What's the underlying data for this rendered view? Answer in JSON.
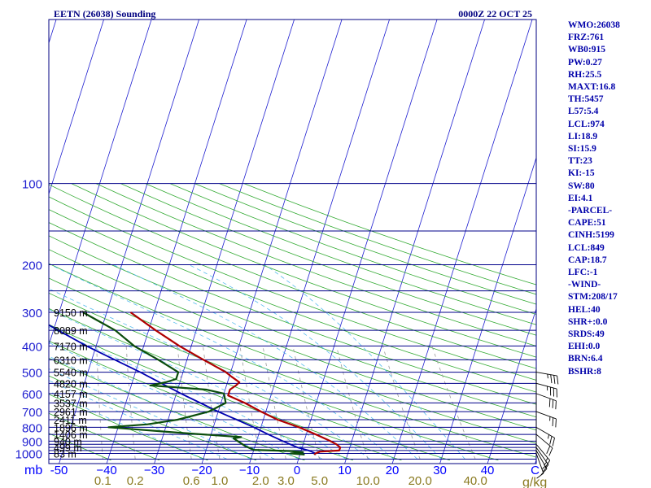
{
  "colors": {
    "frame": "#000080",
    "isobar": "#00008a",
    "isotherm": "#1f1fd0",
    "dry_adiabat": "#33aa33",
    "moist_adiabat": "#55bbee",
    "mixing_ratio": "#9a9a9a",
    "temperature": "#b00000",
    "dewpoint": "#0b4d0b",
    "parcel": "#0000b0",
    "title_text": "#000080",
    "pressure_labels": "#1f1fd0",
    "temp_labels": "#0000ff",
    "mixratio_labels": "#8a7a20",
    "height_labels": "#000000",
    "wind_barb": "#000000"
  },
  "chart_data": {
    "type": "line",
    "title": "EETN (26038) Sounding",
    "timestamp": "0000Z 22 OCT 25",
    "pressure_axis_unit": "mb",
    "pressure_ticks": [
      {
        "p": 100,
        "label": "100"
      },
      {
        "p": 200,
        "label": "200"
      },
      {
        "p": 300,
        "label": "300"
      },
      {
        "p": 400,
        "label": "400"
      },
      {
        "p": 500,
        "label": "500"
      },
      {
        "p": 600,
        "label": "600"
      },
      {
        "p": 700,
        "label": "700"
      },
      {
        "p": 800,
        "label": "800"
      },
      {
        "p": 900,
        "label": "900"
      },
      {
        "p": 1000,
        "label": "1000"
      }
    ],
    "isobars": [
      100,
      150,
      200,
      250,
      300,
      350,
      400,
      450,
      500,
      550,
      600,
      650,
      700,
      750,
      800,
      850,
      900,
      925,
      950,
      975,
      1000,
      1050
    ],
    "temp_ticks": [
      {
        "t": -50,
        "label": "-50"
      },
      {
        "t": -40,
        "label": "−40"
      },
      {
        "t": -30,
        "label": "−30"
      },
      {
        "t": -20,
        "label": "−20"
      },
      {
        "t": -10,
        "label": "−10"
      },
      {
        "t": 0,
        "label": "0"
      },
      {
        "t": 10,
        "label": "10"
      },
      {
        "t": 20,
        "label": "20"
      },
      {
        "t": 30,
        "label": "30"
      },
      {
        "t": 40,
        "label": "40"
      },
      {
        "t": 50,
        "label": "C"
      }
    ],
    "mixing_ratio_ticks": [
      {
        "w": 0.1,
        "label": "0.1"
      },
      {
        "w": 0.2,
        "label": "0.2"
      },
      {
        "w": 0.6,
        "label": "0.6"
      },
      {
        "w": 1.0,
        "label": "1.0"
      },
      {
        "w": 2.0,
        "label": "2.0"
      },
      {
        "w": 3.0,
        "label": "3.0"
      },
      {
        "w": 5.0,
        "label": "5.0"
      },
      {
        "w": 10.0,
        "label": "10.0"
      },
      {
        "w": 20.0,
        "label": "20.0"
      },
      {
        "w": 40.0,
        "label": "40.0"
      }
    ],
    "mixing_ratio_unit": "g/kg",
    "height_labels": [
      {
        "p": 300,
        "label": "9150 m"
      },
      {
        "p": 350,
        "label": "8089 m"
      },
      {
        "p": 400,
        "label": "7170 m"
      },
      {
        "p": 450,
        "label": "6310 m"
      },
      {
        "p": 500,
        "label": "5540 m"
      },
      {
        "p": 550,
        "label": "4820 m"
      },
      {
        "p": 600,
        "label": "4157 m"
      },
      {
        "p": 650,
        "label": "3537 m"
      },
      {
        "p": 700,
        "label": "2961 m"
      },
      {
        "p": 750,
        "label": "2411 m"
      },
      {
        "p": 800,
        "label": "1896 m"
      },
      {
        "p": 850,
        "label": "1406 m"
      },
      {
        "p": 900,
        "label": "940 m"
      },
      {
        "p": 950,
        "label": "499 m"
      },
      {
        "p": 1000,
        "label": "83 m"
      }
    ],
    "temperature_profile": [
      {
        "p": 1010,
        "t": 3.0
      },
      {
        "p": 1000,
        "t": 3.2
      },
      {
        "p": 985,
        "t": 4.0
      },
      {
        "p": 975,
        "t": 8.0
      },
      {
        "p": 950,
        "t": 8.0
      },
      {
        "p": 925,
        "t": 7.0
      },
      {
        "p": 900,
        "t": 5.5
      },
      {
        "p": 850,
        "t": 2.0
      },
      {
        "p": 800,
        "t": -2.0
      },
      {
        "p": 750,
        "t": -7.0
      },
      {
        "p": 700,
        "t": -11.0
      },
      {
        "p": 650,
        "t": -15.0
      },
      {
        "p": 610,
        "t": -19.0
      },
      {
        "p": 580,
        "t": -19.0
      },
      {
        "p": 560,
        "t": -18.0
      },
      {
        "p": 545,
        "t": -17.5
      },
      {
        "p": 520,
        "t": -19.5
      },
      {
        "p": 500,
        "t": -21.0
      },
      {
        "p": 450,
        "t": -26.5
      },
      {
        "p": 400,
        "t": -32.5
      },
      {
        "p": 350,
        "t": -38.5
      },
      {
        "p": 300,
        "t": -45.0
      }
    ],
    "dewpoint_profile": [
      {
        "p": 1010,
        "t": 1.0
      },
      {
        "p": 1000,
        "t": -2.0
      },
      {
        "p": 990,
        "t": 0.5
      },
      {
        "p": 980,
        "t": -2.0
      },
      {
        "p": 970,
        "t": -10.0
      },
      {
        "p": 940,
        "t": -12.0
      },
      {
        "p": 880,
        "t": -15.0
      },
      {
        "p": 870,
        "t": -13.5
      },
      {
        "p": 860,
        "t": -17.5
      },
      {
        "p": 840,
        "t": -26.0
      },
      {
        "p": 800,
        "t": -42.0
      },
      {
        "p": 780,
        "t": -34.0
      },
      {
        "p": 750,
        "t": -28.0
      },
      {
        "p": 700,
        "t": -22.0
      },
      {
        "p": 650,
        "t": -19.0
      },
      {
        "p": 600,
        "t": -20.0
      },
      {
        "p": 580,
        "t": -24.0
      },
      {
        "p": 560,
        "t": -36.0
      },
      {
        "p": 545,
        "t": -33.0
      },
      {
        "p": 530,
        "t": -31.0
      },
      {
        "p": 500,
        "t": -31.0
      },
      {
        "p": 450,
        "t": -36.0
      },
      {
        "p": 400,
        "t": -42.0
      },
      {
        "p": 350,
        "t": -47.0
      },
      {
        "p": 300,
        "t": -55.0
      }
    ],
    "parcel_profile": [
      {
        "p": 1000,
        "t": 3.2
      },
      {
        "p": 974,
        "t": 1.5
      },
      {
        "p": 950,
        "t": -1.0
      },
      {
        "p": 900,
        "t": -4.5
      },
      {
        "p": 850,
        "t": -8.0
      },
      {
        "p": 800,
        "t": -11.5
      },
      {
        "p": 700,
        "t": -20.0
      },
      {
        "p": 600,
        "t": -29.0
      },
      {
        "p": 500,
        "t": -39.0
      },
      {
        "p": 400,
        "t": -52.0
      },
      {
        "p": 300,
        "t": -67.0
      },
      {
        "p": 200,
        "t": -90.0
      },
      {
        "p": 150,
        "t": -105.0
      },
      {
        "p": 105,
        "t": -122.0
      }
    ],
    "wind_barbs": [
      {
        "p": 1000,
        "dir": 200,
        "spd": 10
      },
      {
        "p": 975,
        "dir": 210,
        "spd": 15
      },
      {
        "p": 950,
        "dir": 215,
        "spd": 15
      },
      {
        "p": 925,
        "dir": 220,
        "spd": 15
      },
      {
        "p": 850,
        "dir": 230,
        "spd": 20
      },
      {
        "p": 800,
        "dir": 240,
        "spd": 25
      },
      {
        "p": 700,
        "dir": 250,
        "spd": 25
      },
      {
        "p": 600,
        "dir": 250,
        "spd": 30
      },
      {
        "p": 550,
        "dir": 255,
        "spd": 35
      },
      {
        "p": 500,
        "dir": 260,
        "spd": 35
      }
    ]
  },
  "side_panel": [
    "WMO:26038",
    "FRZ:761",
    "WB0:915",
    "PW:0.27",
    "RH:25.5",
    "MAXT:16.8",
    "TH:5457",
    "L57:5.4",
    "LCL:974",
    "LI:18.9",
    "SI:15.9",
    "TT:23",
    "KI:-15",
    "SW:80",
    "EI:4.1",
    "-PARCEL-",
    "CAPE:51",
    "CINH:5199",
    "LCL:849",
    "CAP:18.7",
    "LFC:-1",
    "-WIND-",
    "STM:208/17",
    "HEL:40",
    "SHR+:0.0",
    "SRDS:49",
    "EHI:0.0",
    "BRN:6.4",
    "BSHR:8"
  ]
}
